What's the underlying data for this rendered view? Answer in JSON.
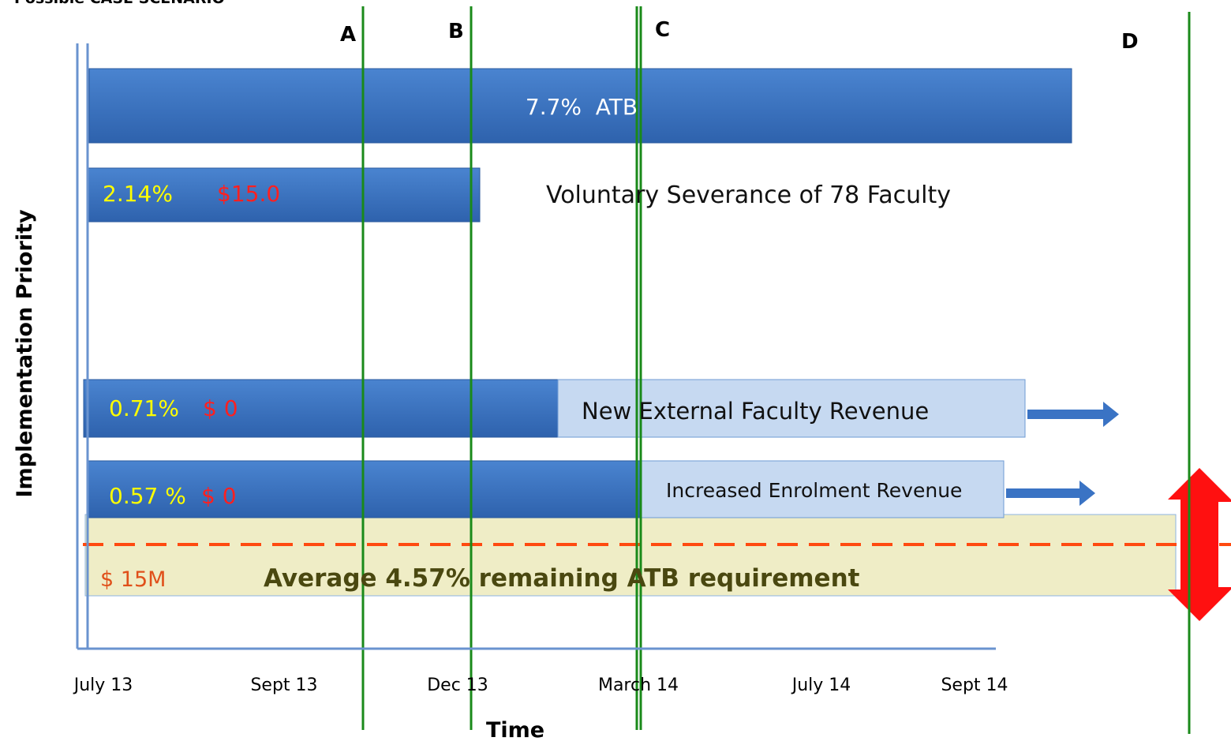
{
  "title": "Possible CASE SCENARIO",
  "markers": [
    "A",
    "B",
    "C",
    "D"
  ],
  "bars": [
    {
      "label": "7.7%  ATB"
    },
    {
      "percent": "2.14%",
      "amount": "$15.0",
      "description": "Voluntary Severance of 78 Faculty"
    },
    {
      "percent": "0.71%",
      "amount": "$ 0",
      "description": "New External Faculty Revenue"
    },
    {
      "percent": "0.57 %",
      "amount": "$ 0",
      "description": "Increased Enrolment Revenue"
    }
  ],
  "remaining": {
    "amount": "$ 15M",
    "description": "Average 4.57% remaining ATB requirement"
  },
  "y_axis_label": "Implementation Priority",
  "x_axis_label": "Time",
  "x_labels": [
    "July 13",
    "Sept 13",
    "Dec 13",
    "March 14",
    "July 14",
    "Sept 14"
  ]
}
